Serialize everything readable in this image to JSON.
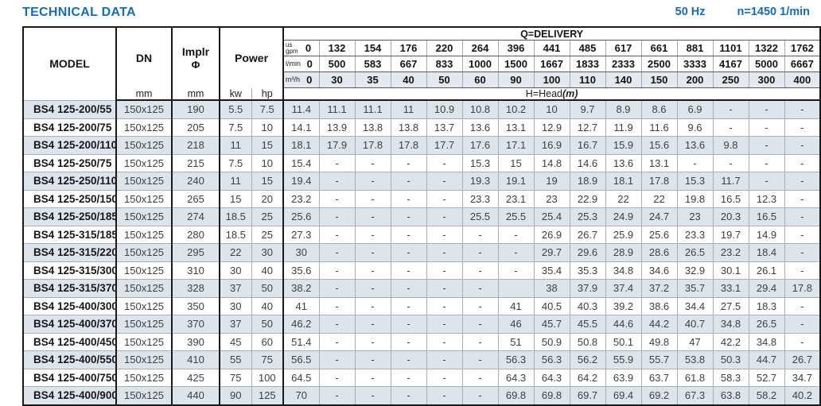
{
  "page": {
    "title": "TECHNICAL DATA",
    "frequency": "50 Hz",
    "speed": "n=1450 1/min"
  },
  "colors": {
    "accent_blue": "#176cb2",
    "row_shade": "#dde4ea",
    "border_dark": "#1a1a1a",
    "border_light": "#a7afb5"
  },
  "table": {
    "headers": {
      "model": "MODEL",
      "dn": "DN",
      "impeller_line1": "Implr",
      "impeller_line2": "Φ",
      "power": "Power",
      "unit_mm_dn": "mm",
      "unit_mm_impeller": "mm",
      "unit_kw": "kw",
      "unit_hp": "hp",
      "delivery_title": "Q=DELIVERY",
      "head_title": "H=Head",
      "head_unit": "(m)",
      "unit_rows": [
        {
          "label_top": "us",
          "label": "gpm",
          "key": "us_gpm"
        },
        {
          "label": "l/min",
          "key": "l_min"
        },
        {
          "label": "m³/h",
          "key": "m3_h"
        }
      ]
    },
    "delivery": {
      "us_gpm": [
        "0",
        "132",
        "154",
        "176",
        "220",
        "264",
        "396",
        "441",
        "485",
        "617",
        "661",
        "881",
        "1101",
        "1322",
        "1762"
      ],
      "l_min": [
        "0",
        "500",
        "583",
        "667",
        "833",
        "1000",
        "1500",
        "1667",
        "1833",
        "2333",
        "2500",
        "3333",
        "4167",
        "5000",
        "6667"
      ],
      "m3_h": [
        "0",
        "30",
        "35",
        "40",
        "50",
        "60",
        "90",
        "100",
        "110",
        "140",
        "150",
        "200",
        "250",
        "300",
        "400"
      ]
    },
    "rows": [
      {
        "model": "BS4 125-200/55",
        "dn": "150x125",
        "impeller": "190",
        "kw": "5.5",
        "hp": "7.5",
        "heads": [
          "11.4",
          "11.1",
          "11.1",
          "11",
          "10.9",
          "10.8",
          "10.2",
          "10",
          "9.7",
          "8.9",
          "8.6",
          "6.9",
          "-",
          "-",
          "-"
        ]
      },
      {
        "model": "BS4 125-200/75",
        "dn": "150x125",
        "impeller": "205",
        "kw": "7.5",
        "hp": "10",
        "heads": [
          "14.1",
          "13.9",
          "13.8",
          "13.8",
          "13.7",
          "13.6",
          "13.1",
          "12.9",
          "12.7",
          "11.9",
          "11.6",
          "9.6",
          "-",
          "-",
          "-"
        ]
      },
      {
        "model": "BS4 125-200/110",
        "dn": "150x125",
        "impeller": "218",
        "kw": "11",
        "hp": "15",
        "heads": [
          "18.1",
          "17.9",
          "17.8",
          "17.8",
          "17.7",
          "17.6",
          "17.1",
          "16.9",
          "16.7",
          "15.9",
          "15.6",
          "13.6",
          "9.8",
          "-",
          "-"
        ]
      },
      {
        "model": "BS4 125-250/75",
        "dn": "150x125",
        "impeller": "215",
        "kw": "7.5",
        "hp": "10",
        "heads": [
          "15.4",
          "-",
          "-",
          "-",
          "-",
          "15.3",
          "15",
          "14.8",
          "14.6",
          "13.6",
          "13.1",
          "-",
          "-",
          "-",
          "-"
        ]
      },
      {
        "model": "BS4 125-250/110",
        "dn": "150x125",
        "impeller": "240",
        "kw": "11",
        "hp": "15",
        "heads": [
          "19.4",
          "-",
          "-",
          "-",
          "-",
          "19.3",
          "19.1",
          "19",
          "18.9",
          "18.1",
          "17.8",
          "15.3",
          "11.7",
          "-",
          "-"
        ]
      },
      {
        "model": "BS4 125-250/150",
        "dn": "150x125",
        "impeller": "265",
        "kw": "15",
        "hp": "20",
        "heads": [
          "23.2",
          "-",
          "-",
          "-",
          "-",
          "23.3",
          "23.1",
          "23",
          "22.9",
          "22",
          "22",
          "19.8",
          "16.5",
          "12.3",
          "-"
        ]
      },
      {
        "model": "BS4 125-250/185",
        "dn": "150x125",
        "impeller": "274",
        "kw": "18.5",
        "hp": "25",
        "heads": [
          "25.6",
          "-",
          "-",
          "-",
          "-",
          "25.5",
          "25.5",
          "25.4",
          "25.3",
          "24.9",
          "24.7",
          "23",
          "20.3",
          "16.5",
          "-"
        ]
      },
      {
        "model": "BS4 125-315/185",
        "dn": "150x125",
        "impeller": "280",
        "kw": "18.5",
        "hp": "25",
        "heads": [
          "27.3",
          "-",
          "-",
          "-",
          "-",
          "-",
          "-",
          "26.9",
          "26.7",
          "25.9",
          "25.6",
          "23.3",
          "19.7",
          "14.9",
          "-"
        ]
      },
      {
        "model": "BS4 125-315/220",
        "dn": "150x125",
        "impeller": "295",
        "kw": "22",
        "hp": "30",
        "heads": [
          "30",
          "-",
          "-",
          "-",
          "-",
          "-",
          "-",
          "29.7",
          "29.6",
          "28.9",
          "28.6",
          "26.5",
          "23.2",
          "18.4",
          "-"
        ]
      },
      {
        "model": "BS4 125-315/300",
        "dn": "150x125",
        "impeller": "310",
        "kw": "30",
        "hp": "40",
        "heads": [
          "35.6",
          "-",
          "-",
          "-",
          "-",
          "-",
          "-",
          "35.4",
          "35.3",
          "34.8",
          "34.6",
          "32.9",
          "30.1",
          "26.1",
          "-"
        ]
      },
      {
        "model": "BS4 125-315/370",
        "dn": "150x125",
        "impeller": "328",
        "kw": "37",
        "hp": "50",
        "heads": [
          "38.2",
          "-",
          "-",
          "-",
          "-",
          "-",
          "",
          "38",
          "37.9",
          "37.4",
          "37.2",
          "35.7",
          "33.1",
          "29.4",
          "17.8"
        ]
      },
      {
        "model": "BS4 125-400/300",
        "dn": "150x125",
        "impeller": "350",
        "kw": "30",
        "hp": "40",
        "heads": [
          "41",
          "-",
          "-",
          "-",
          "-",
          "-",
          "41",
          "40.5",
          "40.3",
          "39.2",
          "38.6",
          "34.4",
          "27.5",
          "18.3",
          "-"
        ]
      },
      {
        "model": "BS4 125-400/370",
        "dn": "150x125",
        "impeller": "370",
        "kw": "37",
        "hp": "50",
        "heads": [
          "46.2",
          "-",
          "-",
          "-",
          "-",
          "-",
          "46",
          "45.7",
          "45.5",
          "44.6",
          "44.2",
          "40.7",
          "34.8",
          "26.5",
          "-"
        ]
      },
      {
        "model": "BS4 125-400/450",
        "dn": "150x125",
        "impeller": "390",
        "kw": "45",
        "hp": "60",
        "heads": [
          "51.4",
          "-",
          "-",
          "-",
          "-",
          "-",
          "51",
          "50.9",
          "50.8",
          "50.1",
          "49.8",
          "47",
          "42.2",
          "34.8",
          "-"
        ]
      },
      {
        "model": "BS4 125-400/550",
        "dn": "150x125",
        "impeller": "410",
        "kw": "55",
        "hp": "75",
        "heads": [
          "56.5",
          "-",
          "-",
          "-",
          "-",
          "-",
          "56.3",
          "56.3",
          "56.2",
          "55.9",
          "55.7",
          "53.8",
          "50.3",
          "44.7",
          "26.7"
        ]
      },
      {
        "model": "BS4 125-400/750",
        "dn": "150x125",
        "impeller": "425",
        "kw": "75",
        "hp": "100",
        "heads": [
          "64.5",
          "-",
          "-",
          "-",
          "-",
          "-",
          "64.3",
          "64.3",
          "64.2",
          "63.9",
          "63.7",
          "61.8",
          "58.3",
          "52.7",
          "34.7"
        ]
      },
      {
        "model": "BS4 125-400/900",
        "dn": "150x125",
        "impeller": "440",
        "kw": "90",
        "hp": "125",
        "heads": [
          "70",
          "-",
          "-",
          "-",
          "-",
          "-",
          "69.8",
          "69.8",
          "69.7",
          "69.4",
          "69.2",
          "67.3",
          "63.8",
          "58.2",
          "40.2"
        ]
      }
    ]
  }
}
